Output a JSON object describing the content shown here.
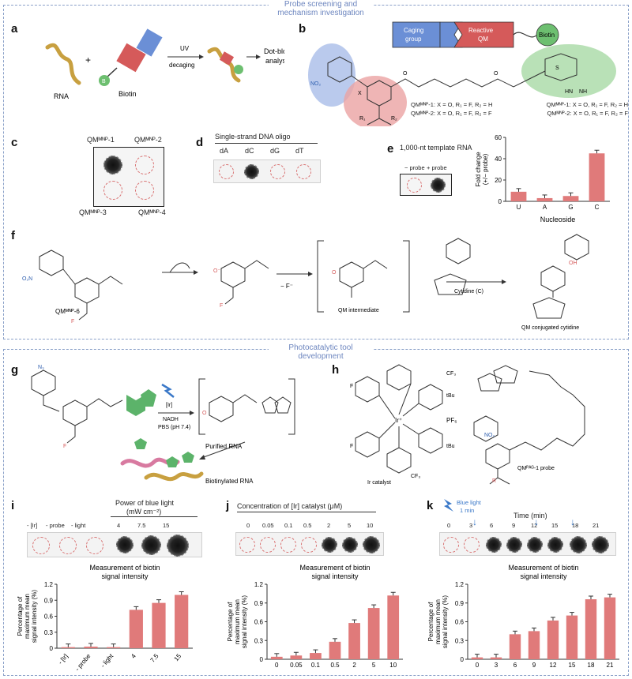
{
  "section_top": {
    "title_line1": "Probe screening and",
    "title_line2": "mechanism investigation"
  },
  "section_bottom": {
    "title_line1": "Photocatalytic tool",
    "title_line2": "development"
  },
  "panel_a": {
    "label": "a",
    "rna": "RNA",
    "plus": "+",
    "biotin": "Biotin",
    "uv": "UV",
    "decaging": "decaging",
    "dotblot": "Dot-blot",
    "analysis": "analysis",
    "b_badge": "B"
  },
  "panel_b": {
    "label": "b",
    "caging": "Caging",
    "group": "group",
    "reactive": "Reactive",
    "qm": "QM",
    "biotin": "Biotin",
    "legend": [
      "QMᴹᴺᴾ-1: X = O, R₁ = F, R₂ = H",
      "QMᴹᴺᴾ-2: X = O, R₁ = F, R₂ = F",
      "QMᴹᴺᴾ-1: X = O, R₁ = F, R₂ = H",
      "QMᴹᴺᴾ-2: X = O, R₁ = F, R₂ = F"
    ]
  },
  "panel_c": {
    "label": "c",
    "tl": "QMᴹᴺᴾ-1",
    "tr": "QMᴹᴺᴾ-2",
    "bl": "QMᴹᴺᴾ-3",
    "br": "QMᴹᴺᴾ-4"
  },
  "panel_d": {
    "label": "d",
    "title": "Single-strand DNA oligo",
    "lanes": [
      "dA",
      "dC",
      "dG",
      "dT"
    ]
  },
  "panel_e": {
    "label": "e",
    "title": "1,000-nt template RNA",
    "minus": "− probe",
    "plus": "+ probe",
    "chart": {
      "ylabel1": "Fold change",
      "ylabel2": "(+/− probe)",
      "xlabel": "Nucleoside",
      "categories": [
        "U",
        "A",
        "G",
        "C"
      ],
      "ticks": [
        "0",
        "20",
        "40",
        "60"
      ]
    }
  },
  "panel_f": {
    "label": "f",
    "qm6": "QMᴹᴺᴾ-6",
    "fminus": "− F⁻",
    "qmint": "QM intermediate",
    "cytidine": "Cytidine (C)",
    "conj": "QM conjugated cytidine"
  },
  "panel_g": {
    "label": "g",
    "ir": "[Ir]",
    "nadh": "NADH",
    "pbs": "PBS (pH 7.4)",
    "purified": "Purified RNA",
    "biotinylated": "Biotinylated RNA"
  },
  "panel_h": {
    "label": "h",
    "catalyst": "Ir catalyst",
    "pf6": "PF₆",
    "probe": "QMᴾᴬᴳ-1 probe",
    "cf3": "CF₃",
    "tbu": "tBu"
  },
  "panel_i": {
    "label": "i",
    "title1": "Power of blue light",
    "title2": "(mW cm⁻²)",
    "lanes": [
      "- [Ir]",
      "- probe",
      "- light",
      "4",
      "7.5",
      "15"
    ],
    "chart_title1": "Measurement of biotin",
    "chart_title2": "signal intensity"
  },
  "panel_j": {
    "label": "j",
    "title": "Concentration of [Ir] catalyst (μM)",
    "lanes": [
      "0",
      "0.05",
      "0.1",
      "0.5",
      "2",
      "5",
      "10"
    ],
    "chart_title1": "Measurement of biotin",
    "chart_title2": "signal intensity"
  },
  "panel_k": {
    "label": "k",
    "blue1": "Blue light",
    "blue2": "1 min",
    "title": "Time (min)",
    "lanes": [
      "0",
      "3",
      "6",
      "9",
      "12",
      "15",
      "18",
      "21"
    ],
    "chart_title1": "Measurement of biotin",
    "chart_title2": "signal intensity"
  },
  "ylabel_bottom": [
    "Percentage of",
    "maximum mean",
    "signal intensity (%)"
  ],
  "colors": {
    "bar": "#e07a7a",
    "border": "#8aa0c8",
    "blue": "#6b8fd6",
    "red": "#d55a5a",
    "green": "#6dbf70"
  },
  "chart_data": [
    {
      "type": "bar",
      "title": "",
      "xlabel": "Nucleoside",
      "ylabel": "Fold change (+/− probe)",
      "categories": [
        "U",
        "A",
        "G",
        "C"
      ],
      "values": [
        9,
        3,
        5,
        45
      ],
      "ylim": [
        0,
        60
      ]
    },
    {
      "type": "bar",
      "title": "Measurement of biotin signal intensity",
      "ylabel": "Percentage of maximum mean signal intensity (%)",
      "categories": [
        "- [Ir]",
        "- probe",
        "- light",
        "4",
        "7.5",
        "15"
      ],
      "values": [
        0.02,
        0.03,
        0.02,
        0.72,
        0.85,
        1.0
      ],
      "ylim": [
        0,
        1.2
      ],
      "yticks": [
        "0",
        "0.3",
        "0.6",
        "0.9",
        "1.2"
      ]
    },
    {
      "type": "bar",
      "title": "Measurement of biotin signal intensity",
      "ylabel": "Percentage of maximum mean signal intensity (%)",
      "categories": [
        "0",
        "0.05",
        "0.1",
        "0.5",
        "2",
        "5",
        "10"
      ],
      "values": [
        0.04,
        0.06,
        0.1,
        0.28,
        0.58,
        0.82,
        1.02
      ],
      "ylim": [
        0,
        1.2
      ],
      "yticks": [
        "0",
        "0.3",
        "0.6",
        "0.9",
        "1.2"
      ]
    },
    {
      "type": "bar",
      "title": "Measurement of biotin signal intensity",
      "ylabel": "Percentage of maximum mean signal intensity (%)",
      "categories": [
        "0",
        "3",
        "6",
        "9",
        "12",
        "15",
        "18",
        "21"
      ],
      "values": [
        0.03,
        0.03,
        0.4,
        0.45,
        0.62,
        0.7,
        0.96,
        0.99
      ],
      "ylim": [
        0,
        1.2
      ],
      "yticks": [
        "0",
        "0.3",
        "0.6",
        "0.9",
        "1.2"
      ]
    }
  ]
}
